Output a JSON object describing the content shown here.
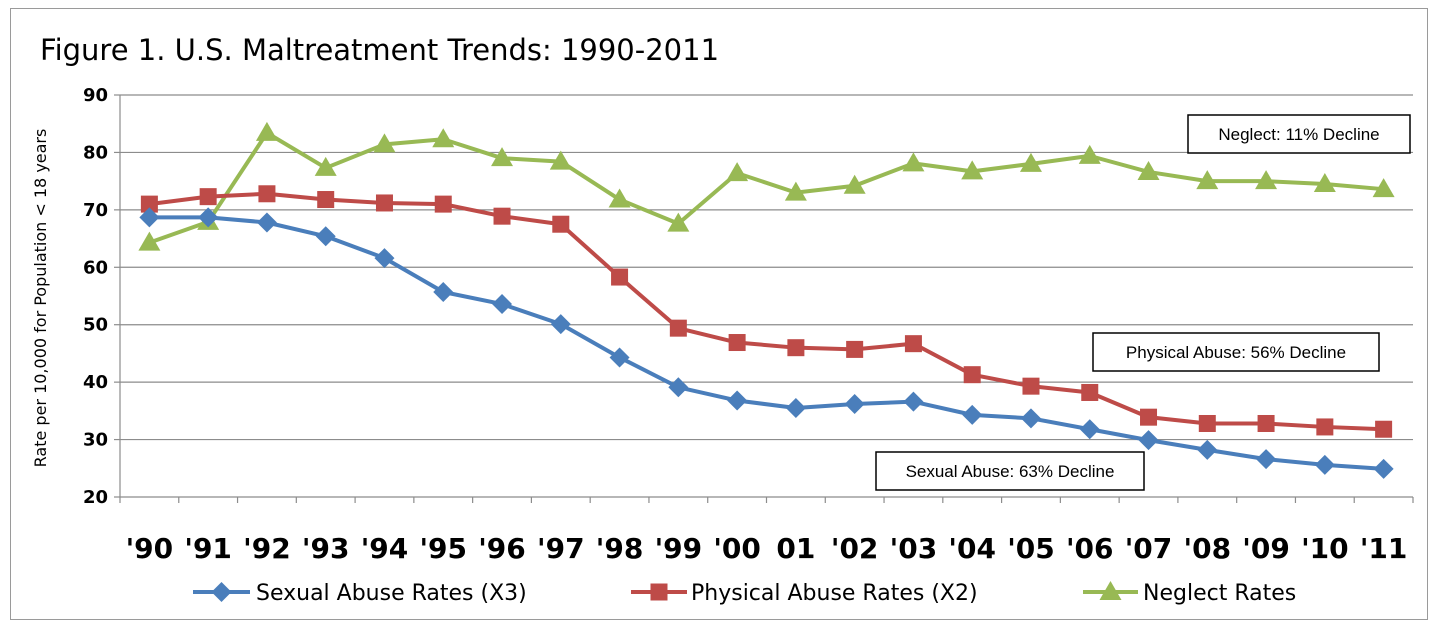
{
  "chart_data": {
    "type": "line",
    "title": "Figure 1. U.S. Maltreatment Trends:  1990-2011",
    "ylabel": "Rate per 10,000   for Population < 18 years",
    "xlabel": "",
    "ylim": [
      20,
      90
    ],
    "yticks": [
      "20",
      "30",
      "40",
      "50",
      "60",
      "70",
      "80",
      "90"
    ],
    "categories": [
      "'90",
      "'91",
      "'92",
      "'93",
      "'94",
      "'95",
      "'96",
      "'97",
      "'98",
      "'99",
      "'00",
      "01",
      "'02",
      "'03",
      "'04",
      "'05",
      "'06",
      "'07",
      "'08",
      "'09",
      "'10",
      "'11"
    ],
    "grid": "horizontal",
    "legend_position": "bottom",
    "series": [
      {
        "name": "Sexual Abuse Rates (X3)",
        "color": "#4a7ebb",
        "marker": "diamond",
        "values": [
          68.7,
          68.7,
          67.8,
          65.4,
          61.6,
          55.7,
          53.6,
          50.1,
          44.3,
          39.1,
          36.8,
          35.5,
          36.2,
          36.6,
          34.3,
          33.7,
          31.8,
          29.9,
          28.2,
          26.6,
          25.6,
          24.9
        ]
      },
      {
        "name": "Physical Abuse Rates (X2)",
        "color": "#be4b48",
        "marker": "square",
        "values": [
          71.0,
          72.3,
          72.8,
          71.8,
          71.2,
          71.0,
          68.9,
          67.5,
          58.3,
          49.4,
          46.9,
          46.0,
          45.7,
          46.7,
          41.3,
          39.3,
          38.2,
          33.9,
          32.8,
          32.8,
          32.2,
          31.8
        ]
      },
      {
        "name": "Neglect Rates",
        "color": "#98b954",
        "marker": "triangle",
        "values": [
          64.3,
          67.9,
          83.4,
          77.3,
          81.4,
          82.3,
          79.0,
          78.4,
          71.8,
          67.6,
          76.4,
          73.0,
          74.2,
          78.1,
          76.7,
          78.0,
          79.4,
          76.6,
          75.0,
          75.0,
          74.5,
          73.6
        ]
      }
    ],
    "annotations": [
      {
        "text": "Neglect: 11% Decline",
        "series": "Neglect Rates"
      },
      {
        "text": "Physical Abuse: 56% Decline",
        "series": "Physical Abuse Rates (X2)"
      },
      {
        "text": "Sexual Abuse: 63% Decline",
        "series": "Sexual Abuse Rates (X3)"
      }
    ]
  }
}
